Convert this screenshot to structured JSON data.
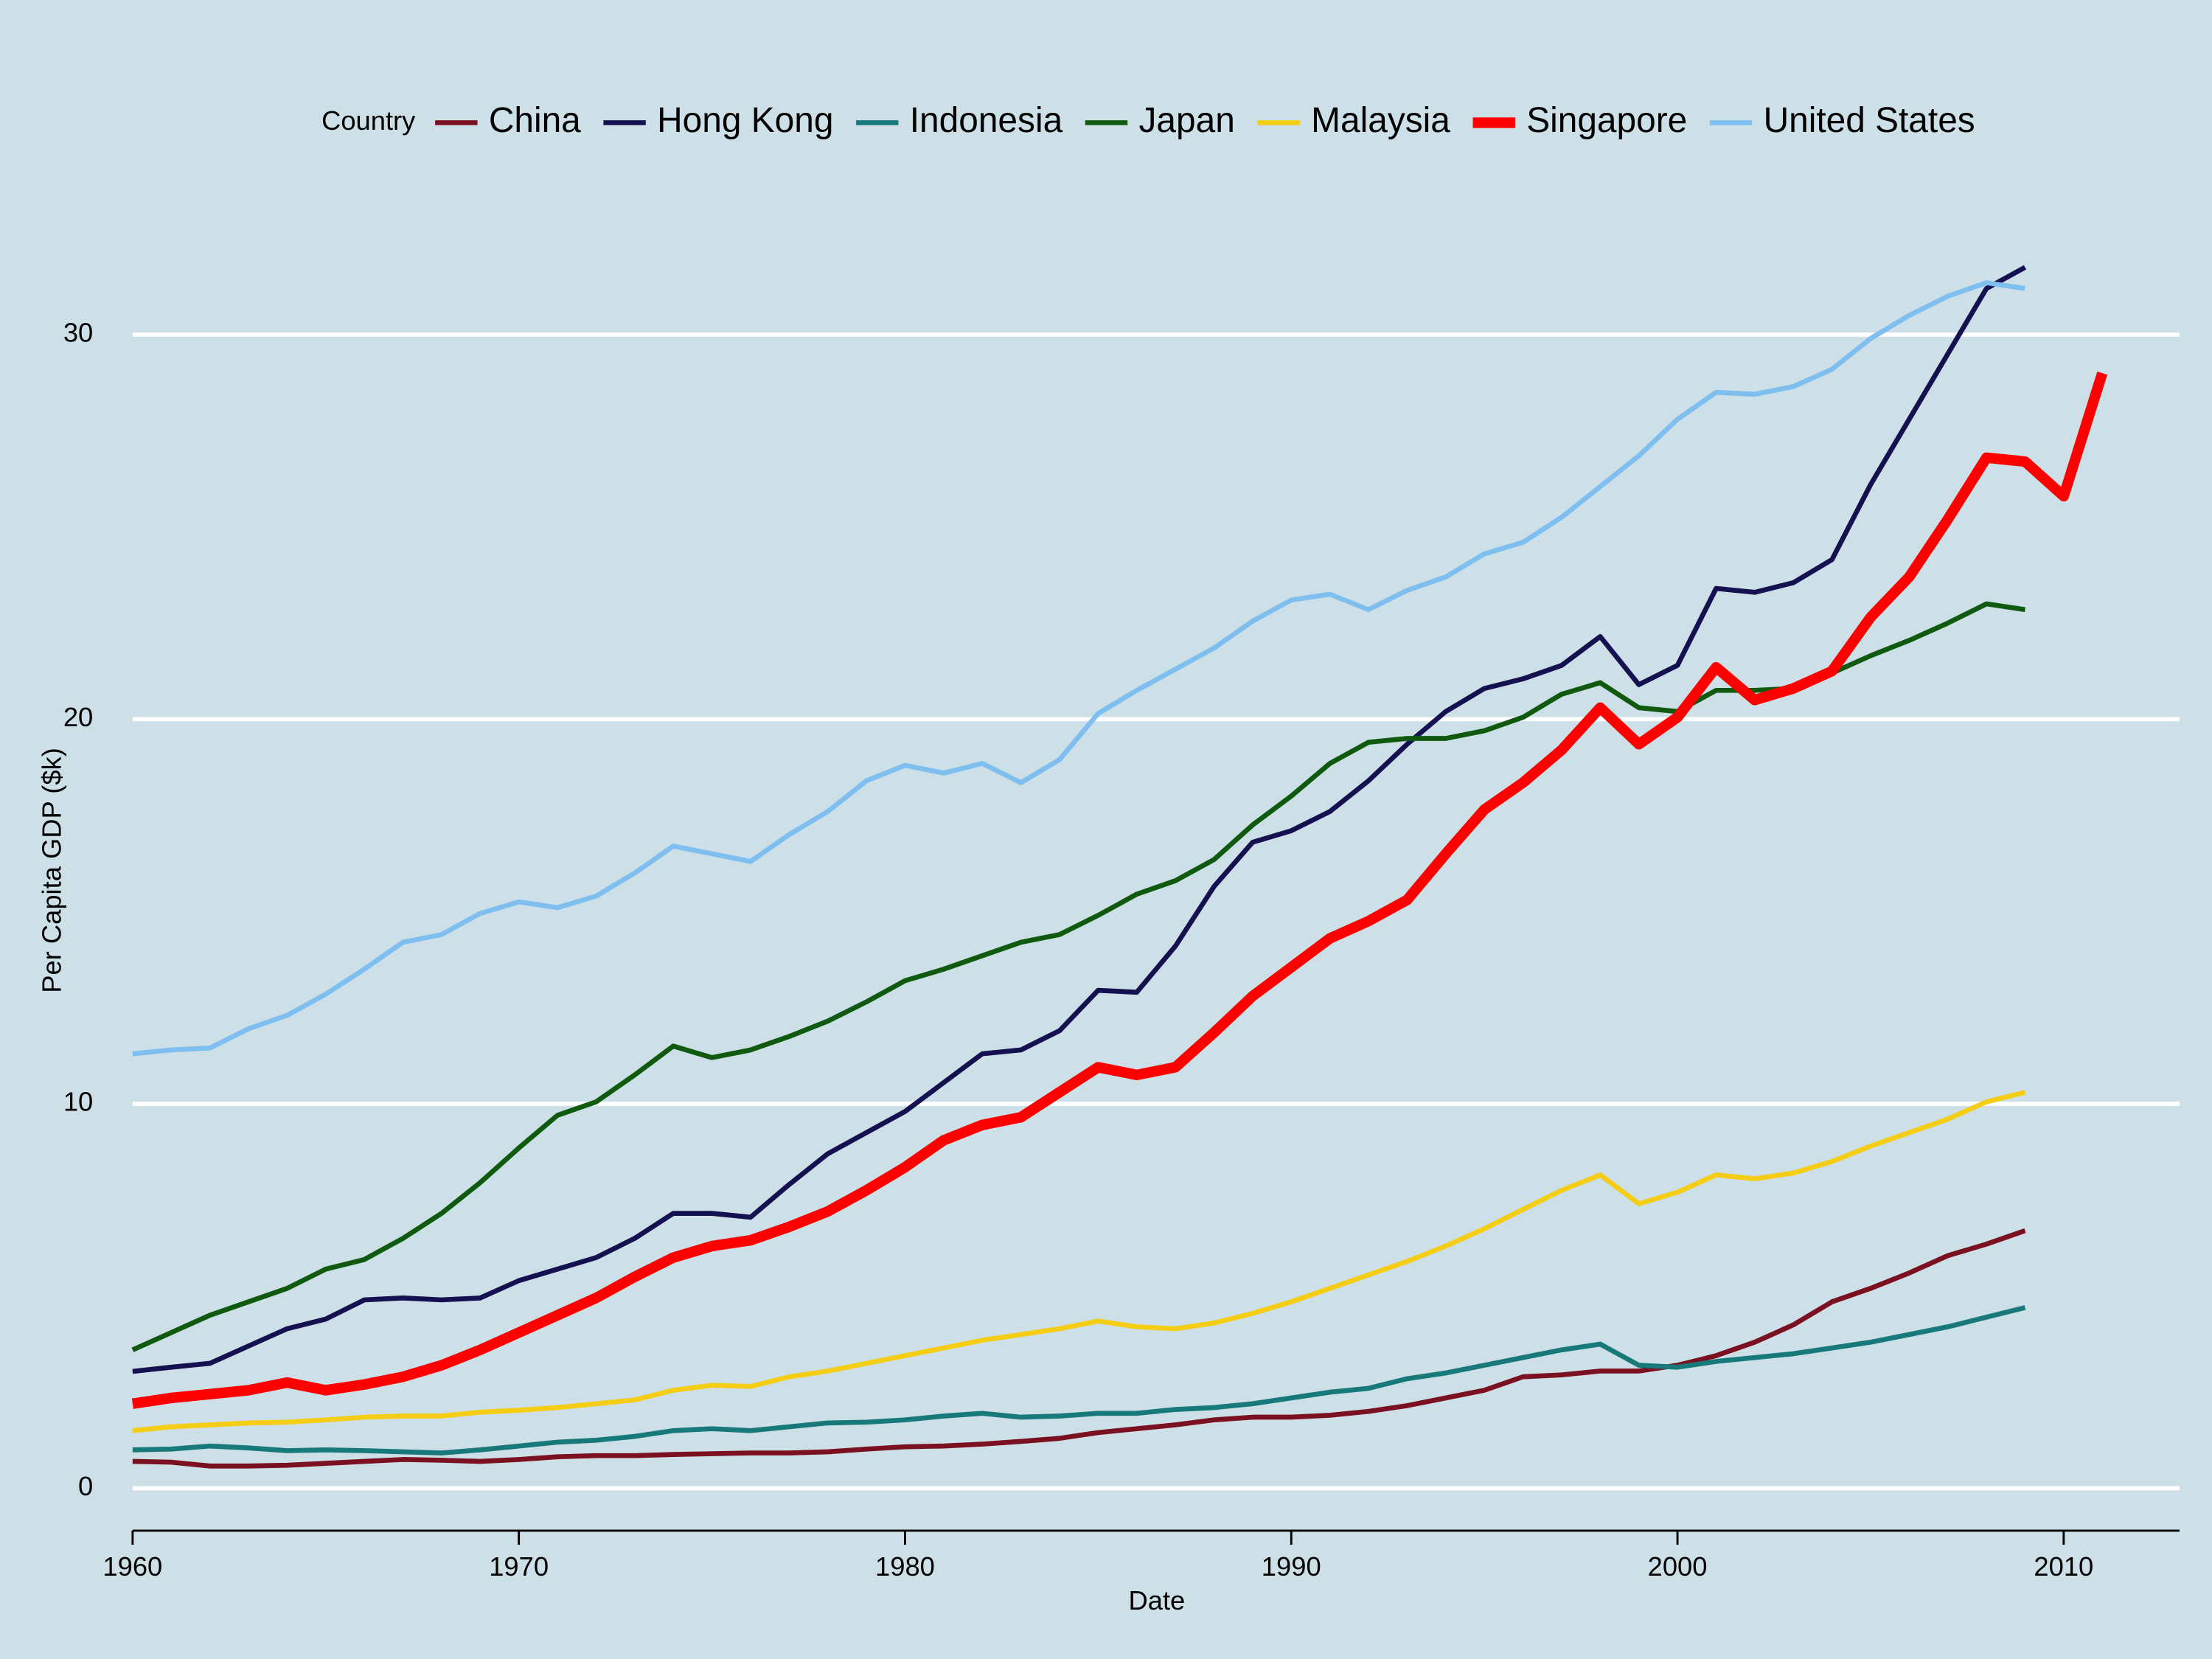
{
  "chart_data": {
    "type": "line",
    "xlabel": "Date",
    "ylabel": "Per Capita GDP ($k)",
    "legend_title": "Country",
    "legend": "top",
    "grid": true,
    "background": "#cde0e8",
    "xlim": [
      1960,
      2013
    ],
    "ylim": [
      -1.1,
      33.2
    ],
    "xticks": [
      1960,
      1970,
      1980,
      1990,
      2000,
      2010
    ],
    "yticks": [
      0,
      10,
      20,
      30
    ],
    "x": [
      1960,
      1961,
      1962,
      1963,
      1964,
      1965,
      1966,
      1967,
      1968,
      1969,
      1970,
      1971,
      1972,
      1973,
      1974,
      1975,
      1976,
      1977,
      1978,
      1979,
      1980,
      1981,
      1982,
      1983,
      1984,
      1985,
      1986,
      1987,
      1988,
      1989,
      1990,
      1991,
      1992,
      1993,
      1994,
      1995,
      1996,
      1997,
      1998,
      1999,
      2000,
      2001,
      2002,
      2003,
      2004,
      2005,
      2006,
      2007,
      2008,
      2009,
      2010,
      2011
    ],
    "series": [
      {
        "name": "China",
        "color": "#7a1020",
        "linewidth": 3.5,
        "values": [
          0.7,
          0.68,
          0.58,
          0.58,
          0.6,
          0.65,
          0.7,
          0.75,
          0.73,
          0.7,
          0.75,
          0.82,
          0.85,
          0.85,
          0.88,
          0.9,
          0.92,
          0.92,
          0.95,
          1.02,
          1.08,
          1.1,
          1.15,
          1.22,
          1.3,
          1.45,
          1.55,
          1.65,
          1.78,
          1.85,
          1.85,
          1.9,
          2.0,
          2.15,
          2.35,
          2.55,
          2.9,
          2.95,
          3.05,
          3.05,
          3.2,
          3.45,
          3.8,
          4.25,
          4.85,
          5.2,
          5.6,
          6.05,
          6.35,
          6.7,
          null,
          null
        ]
      },
      {
        "name": "Hong Kong",
        "color": "#15104f",
        "linewidth": 3.5,
        "values": [
          3.04,
          3.15,
          3.25,
          3.7,
          4.15,
          4.4,
          4.9,
          4.95,
          4.9,
          4.95,
          5.4,
          5.7,
          6.0,
          6.5,
          7.15,
          7.15,
          7.05,
          7.9,
          8.7,
          9.25,
          9.8,
          10.55,
          11.3,
          11.4,
          11.9,
          12.95,
          12.9,
          14.1,
          15.65,
          16.8,
          17.1,
          17.6,
          18.4,
          19.35,
          20.2,
          20.8,
          21.05,
          21.4,
          22.15,
          20.9,
          21.4,
          23.4,
          23.3,
          23.55,
          24.15,
          26.1,
          27.8,
          29.5,
          31.2,
          31.75,
          null,
          null
        ]
      },
      {
        "name": "Indonesia",
        "color": "#17797a",
        "linewidth": 3.5,
        "values": [
          1.0,
          1.02,
          1.1,
          1.05,
          0.98,
          1.0,
          0.98,
          0.95,
          0.92,
          1.0,
          1.1,
          1.2,
          1.25,
          1.35,
          1.5,
          1.55,
          1.5,
          1.6,
          1.7,
          1.72,
          1.78,
          1.88,
          1.95,
          1.85,
          1.88,
          1.95,
          1.95,
          2.05,
          2.1,
          2.2,
          2.35,
          2.5,
          2.6,
          2.85,
          3.0,
          3.2,
          3.4,
          3.6,
          3.75,
          3.2,
          3.15,
          3.3,
          3.4,
          3.5,
          3.65,
          3.8,
          4.0,
          4.2,
          4.45,
          4.7,
          null,
          null
        ]
      },
      {
        "name": "Japan",
        "color": "#0f5a0f",
        "linewidth": 3.5,
        "values": [
          3.6,
          4.05,
          4.5,
          4.85,
          5.2,
          5.7,
          5.95,
          6.5,
          7.15,
          7.95,
          8.85,
          9.7,
          10.05,
          10.75,
          11.5,
          11.2,
          11.4,
          11.75,
          12.15,
          12.65,
          13.2,
          13.5,
          13.85,
          14.2,
          14.4,
          14.9,
          15.45,
          15.8,
          16.35,
          17.25,
          18.0,
          18.85,
          19.4,
          19.5,
          19.5,
          19.7,
          20.05,
          20.65,
          20.95,
          20.3,
          20.2,
          20.75,
          20.75,
          20.8,
          21.2,
          21.65,
          22.05,
          22.5,
          23.0,
          22.85,
          null,
          null
        ]
      },
      {
        "name": "Malaysia",
        "color": "#f5cd14",
        "linewidth": 3.5,
        "values": [
          1.5,
          1.6,
          1.65,
          1.7,
          1.72,
          1.78,
          1.85,
          1.88,
          1.88,
          1.98,
          2.03,
          2.1,
          2.2,
          2.3,
          2.55,
          2.68,
          2.65,
          2.9,
          3.05,
          3.25,
          3.45,
          3.65,
          3.85,
          4.0,
          4.15,
          4.35,
          4.2,
          4.15,
          4.3,
          4.55,
          4.85,
          5.2,
          5.55,
          5.9,
          6.3,
          6.75,
          7.25,
          7.75,
          8.15,
          7.4,
          7.7,
          8.15,
          8.05,
          8.2,
          8.5,
          8.9,
          9.25,
          9.6,
          10.05,
          10.3,
          null,
          null
        ]
      },
      {
        "name": "Singapore",
        "color": "#ff0000",
        "linewidth": 7.5,
        "values": [
          2.2,
          2.35,
          2.45,
          2.55,
          2.75,
          2.55,
          2.7,
          2.9,
          3.2,
          3.6,
          4.05,
          4.5,
          4.95,
          5.5,
          6.0,
          6.3,
          6.45,
          6.8,
          7.2,
          7.75,
          8.35,
          9.05,
          9.45,
          9.65,
          10.3,
          10.95,
          10.75,
          10.95,
          11.85,
          12.8,
          13.55,
          14.3,
          14.75,
          15.3,
          16.5,
          17.65,
          18.35,
          19.2,
          20.3,
          19.35,
          20.05,
          21.35,
          20.5,
          20.8,
          21.25,
          22.65,
          23.7,
          25.2,
          26.8,
          26.7,
          25.8,
          29.0
        ]
      },
      {
        "name": "United States",
        "color": "#7fbfef",
        "linewidth": 3.5,
        "values": [
          11.3,
          11.4,
          11.45,
          11.95,
          12.3,
          12.85,
          13.5,
          14.2,
          14.4,
          14.95,
          15.25,
          15.1,
          15.4,
          16.0,
          16.7,
          16.5,
          16.3,
          17.0,
          17.6,
          18.4,
          18.8,
          18.6,
          18.85,
          18.35,
          18.95,
          20.15,
          20.75,
          21.3,
          21.85,
          22.55,
          23.1,
          23.25,
          22.85,
          23.35,
          23.7,
          24.3,
          24.6,
          25.25,
          26.05,
          26.85,
          27.8,
          28.5,
          28.45,
          28.65,
          29.1,
          29.9,
          30.5,
          31.0,
          31.35,
          31.2,
          null,
          null
        ]
      }
    ]
  }
}
